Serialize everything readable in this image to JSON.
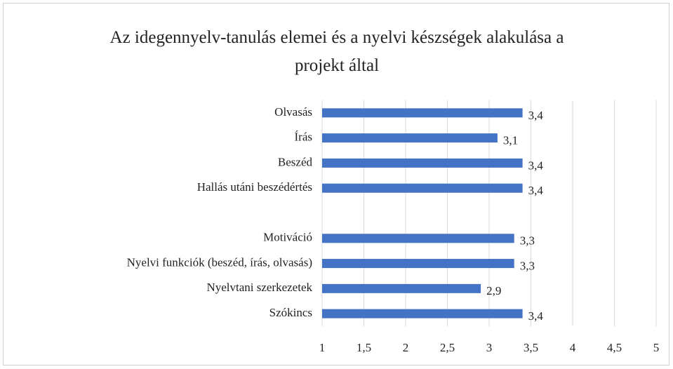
{
  "chart_data": {
    "type": "bar",
    "orientation": "horizontal",
    "title": "Az idegennyelv-tanulás elemei és a nyelvi készségek alakulása a projekt által",
    "categories": [
      "Olvasás",
      "Írás",
      "Beszéd",
      "Hallás utáni beszédértés",
      null,
      "Motiváció",
      "Nyelvi funkciók (beszéd, írás, olvasás)",
      "Nyelvtani szerkezetek",
      "Szókincs"
    ],
    "values": [
      3.4,
      3.1,
      3.4,
      3.4,
      null,
      3.3,
      3.3,
      2.9,
      3.4
    ],
    "value_labels": [
      "3,4",
      "3,1",
      "3,4",
      "3,4",
      null,
      "3,3",
      "3,3",
      "2,9",
      "3,4"
    ],
    "color": "#4472c4",
    "xlim": [
      1,
      5
    ],
    "xticks": [
      1,
      {
        "value": 1.5,
        "label": "1,5"
      },
      2,
      {
        "value": 2.5,
        "label": "2,5"
      },
      3,
      {
        "value": 3.5,
        "label": "3,5"
      },
      4,
      {
        "value": 4.5,
        "label": "4,5"
      },
      5
    ],
    "grid": true
  }
}
